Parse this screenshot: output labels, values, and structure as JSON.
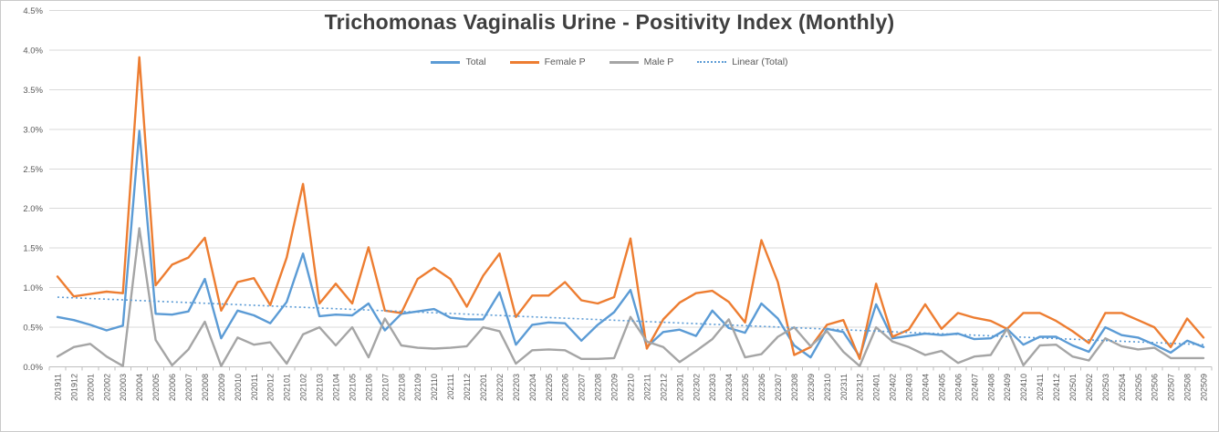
{
  "title": "Trichomonas Vaginalis Urine - Positivity Index (Monthly)",
  "legend": [
    {
      "label": "Total",
      "color": "#5B9BD5",
      "style": "solid"
    },
    {
      "label": "Female P",
      "color": "#ED7D31",
      "style": "solid"
    },
    {
      "label": "Male P",
      "color": "#A5A5A5",
      "style": "solid"
    },
    {
      "label": "Linear (Total)",
      "color": "#5B9BD5",
      "style": "dotted"
    }
  ],
  "colors": {
    "total": "#5B9BD5",
    "female": "#ED7D31",
    "male": "#A5A5A5",
    "trend": "#5B9BD5",
    "grid": "#D9D9D9",
    "axis": "#BFBFBF",
    "tick_label": "#595959",
    "title_text": "#3F3F3F"
  },
  "chart_data": {
    "type": "line",
    "title": "Trichomonas Vaginalis Urine - Positivity Index (Monthly)",
    "xlabel": "",
    "ylabel": "",
    "ylim": [
      0,
      4.5
    ],
    "ytick_step": 0.5,
    "ytick_suffix": "%",
    "grid": true,
    "legend_position": "top",
    "categories": [
      "201911",
      "201912",
      "202001",
      "202002",
      "202003",
      "202004",
      "202005",
      "202006",
      "202007",
      "202008",
      "202009",
      "202010",
      "202011",
      "202012",
      "202101",
      "202102",
      "202103",
      "202104",
      "202105",
      "202106",
      "202107",
      "202108",
      "202109",
      "202110",
      "202111",
      "202112",
      "202201",
      "202202",
      "202203",
      "202204",
      "202205",
      "202206",
      "202207",
      "202208",
      "202209",
      "202210",
      "202211",
      "202212",
      "202301",
      "202302",
      "202303",
      "202304",
      "202305",
      "202306",
      "202307",
      "202308",
      "202309",
      "202310",
      "202311",
      "202312",
      "202401",
      "202402",
      "202403",
      "202404",
      "202405",
      "202406",
      "202407",
      "202408",
      "202409",
      "202410",
      "202411",
      "202412",
      "202501",
      "202502",
      "202503",
      "202504",
      "202505",
      "202506",
      "202507",
      "202508",
      "202509"
    ],
    "series": [
      {
        "name": "Total",
        "color": "#5B9BD5",
        "values": [
          0.63,
          0.59,
          0.53,
          0.46,
          0.52,
          2.98,
          0.67,
          0.66,
          0.7,
          1.11,
          0.36,
          0.71,
          0.65,
          0.55,
          0.82,
          1.43,
          0.64,
          0.66,
          0.65,
          0.8,
          0.46,
          0.67,
          0.7,
          0.73,
          0.62,
          0.6,
          0.6,
          0.94,
          0.28,
          0.53,
          0.56,
          0.55,
          0.33,
          0.53,
          0.69,
          0.97,
          0.25,
          0.44,
          0.47,
          0.39,
          0.71,
          0.49,
          0.43,
          0.8,
          0.61,
          0.27,
          0.12,
          0.48,
          0.44,
          0.13,
          0.79,
          0.36,
          0.39,
          0.42,
          0.4,
          0.42,
          0.35,
          0.36,
          0.48,
          0.28,
          0.38,
          0.38,
          0.27,
          0.19,
          0.5,
          0.4,
          0.37,
          0.28,
          0.18,
          0.33,
          0.25
        ]
      },
      {
        "name": "Female P",
        "color": "#ED7D31",
        "values": [
          1.14,
          0.89,
          0.92,
          0.95,
          0.93,
          3.91,
          1.03,
          1.29,
          1.38,
          1.63,
          0.71,
          1.07,
          1.12,
          0.78,
          1.38,
          2.31,
          0.8,
          1.05,
          0.8,
          1.51,
          0.71,
          0.68,
          1.11,
          1.25,
          1.11,
          0.76,
          1.15,
          1.43,
          0.63,
          0.9,
          0.9,
          1.07,
          0.84,
          0.8,
          0.88,
          1.62,
          0.23,
          0.6,
          0.81,
          0.93,
          0.96,
          0.82,
          0.56,
          1.6,
          1.07,
          0.15,
          0.25,
          0.53,
          0.59,
          0.1,
          1.05,
          0.38,
          0.47,
          0.79,
          0.48,
          0.68,
          0.62,
          0.58,
          0.48,
          0.68,
          0.68,
          0.58,
          0.45,
          0.3,
          0.68,
          0.68,
          0.59,
          0.5,
          0.25,
          0.61,
          0.37
        ]
      },
      {
        "name": "Male P",
        "color": "#A5A5A5",
        "values": [
          0.13,
          0.25,
          0.29,
          0.13,
          0.01,
          1.75,
          0.34,
          0.02,
          0.22,
          0.57,
          0.01,
          0.37,
          0.28,
          0.31,
          0.04,
          0.41,
          0.5,
          0.27,
          0.5,
          0.12,
          0.61,
          0.27,
          0.24,
          0.23,
          0.24,
          0.26,
          0.5,
          0.45,
          0.04,
          0.21,
          0.22,
          0.21,
          0.1,
          0.1,
          0.11,
          0.63,
          0.32,
          0.25,
          0.06,
          0.2,
          0.35,
          0.6,
          0.12,
          0.16,
          0.38,
          0.5,
          0.26,
          0.45,
          0.19,
          0.01,
          0.5,
          0.32,
          0.25,
          0.15,
          0.2,
          0.05,
          0.13,
          0.15,
          0.48,
          0.02,
          0.27,
          0.28,
          0.13,
          0.08,
          0.36,
          0.26,
          0.22,
          0.24,
          0.11,
          0.11,
          0.11
        ]
      }
    ],
    "trendline": {
      "name": "Linear (Total)",
      "color": "#5B9BD5",
      "style": "dotted",
      "start": 0.88,
      "end": 0.28
    }
  }
}
